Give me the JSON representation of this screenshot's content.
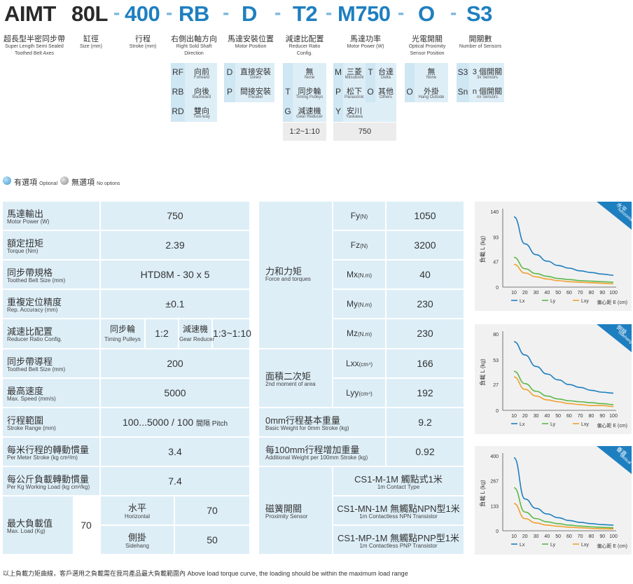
{
  "model": {
    "codes": [
      "AIMT",
      "80L",
      "400",
      "RB",
      "D",
      "T2",
      "M750",
      "O",
      "S3"
    ],
    "segments": [
      {
        "zh": "超長型半密同步帶",
        "en": "Super Length Semi Sealed Toothed Belt Axes"
      },
      {
        "zh": "缸徑",
        "en": "Size (mm)"
      },
      {
        "zh": "行程",
        "en": "Stroke (mm)"
      },
      {
        "zh": "右側出軸方向",
        "en": "Right Sold Shaft Direction"
      },
      {
        "zh": "馬達安裝位置",
        "en": "Motor Position"
      },
      {
        "zh": "減速比配置",
        "en": "Reducer Ratio Config."
      },
      {
        "zh": "馬達功率",
        "en": "Motor Power (W)"
      },
      {
        "zh": "光電開關",
        "en": "Optical Proximity Sensor Position"
      },
      {
        "zh": "開關數",
        "en": "Number of Sensors"
      }
    ]
  },
  "options": {
    "direction": [
      {
        "code": "RF",
        "zh": "向前",
        "en": "Forward"
      },
      {
        "code": "RB",
        "zh": "向後",
        "en": "Backward"
      },
      {
        "code": "RD",
        "zh": "雙向",
        "en": "Two-way"
      }
    ],
    "motor_position": [
      {
        "code": "D",
        "zh": "直接安裝",
        "en": "Direct"
      },
      {
        "code": "P",
        "zh": "間接安裝",
        "en": "Parallel"
      }
    ],
    "reducer": [
      {
        "code": "",
        "zh": "無",
        "en": "None"
      },
      {
        "code": "T",
        "zh": "同步輪",
        "en": "Timing Pulleys"
      },
      {
        "code": "G",
        "zh": "減速機",
        "en": "Gear Reducer"
      },
      {
        "ratio": "1:2~1:10"
      }
    ],
    "motor": [
      {
        "code": "M",
        "zh": "三菱",
        "en": "Mitsubishi"
      },
      {
        "code": "T",
        "zh": "台達",
        "en": "Delta"
      },
      {
        "code": "P",
        "zh": "松下",
        "en": "Panasonic"
      },
      {
        "code": "O",
        "zh": "其他",
        "en": "Others"
      },
      {
        "code": "Y",
        "zh": "安川",
        "en": "Yaskawa"
      },
      {
        "power": "750"
      }
    ],
    "sensor": [
      {
        "code": "",
        "zh": "無",
        "en": "None"
      },
      {
        "code": "O",
        "zh": "外掛",
        "en": "Hang Outside"
      }
    ],
    "sensor_count": [
      {
        "code": "S3",
        "zh": "3 個開關",
        "en": "3x Sensors"
      },
      {
        "code": "Sn",
        "zh": "n 個開關",
        "en": "nx Sensors"
      }
    ]
  },
  "legend": {
    "optional_zh": "有選項",
    "optional_en": "Optional",
    "none_zh": "無選項",
    "none_en": "No options"
  },
  "spec_left": [
    {
      "zh": "馬達輸出",
      "en": "Motor Power (W)",
      "value": "750"
    },
    {
      "zh": "額定扭矩",
      "en": "Torque (Nm)",
      "value": "2.39"
    },
    {
      "zh": "同步帶規格",
      "en": "Toothed Belt Size (mm)",
      "value": "HTD8M - 30 x 5"
    },
    {
      "zh": "重複定位精度",
      "en": "Rep. Accuracy (mm)",
      "value": "±0.1"
    },
    {
      "zh": "減速比配置",
      "en": "Reducer Ratio Config.",
      "sub1_zh": "同步輪",
      "sub1_en": "Timing Pulleys",
      "sub1_val": "1:2",
      "sub2_zh": "減速機",
      "sub2_en": "Gear Reducer",
      "sub2_val": "1:3~1:10"
    },
    {
      "zh": "同步帶導程",
      "en": "Toothed Belt Size (mm)",
      "value": "200"
    },
    {
      "zh": "最高速度",
      "en": "Max. Speed (mm/s)",
      "value": "5000"
    },
    {
      "zh": "行程範圍",
      "en": "Stroke Range (mm)",
      "value": "100...5000 / 100",
      "value_unit": "間隔 Pitch"
    },
    {
      "zh": "每米行程的轉動慣量",
      "en": "Per Meter Stroke (kg cm²/m)",
      "value": "3.4"
    },
    {
      "zh": "每公斤負載轉動慣量",
      "en": "Per Kg Working Load (kg cm²/kg)",
      "value": "7.4"
    },
    {
      "zh": "最大負載值",
      "en": "Max. Load (Kg)",
      "value": "70",
      "sub1_zh": "水平",
      "sub1_en": "Horizontal",
      "sub1_val": "70",
      "sub2_zh": "側掛",
      "sub2_en": "Sidehang",
      "sub2_val": "50"
    }
  ],
  "spec_right": {
    "force": {
      "zh": "力和力矩",
      "en": "Force and torques",
      "rows": [
        {
          "sym": "Fy",
          "sub": "(N)",
          "value": "1050"
        },
        {
          "sym": "Fz",
          "sub": "(N)",
          "value": "3200"
        },
        {
          "sym": "Mx",
          "sub": "(N.m)",
          "value": "40"
        },
        {
          "sym": "My",
          "sub": "(N.m)",
          "value": "230"
        },
        {
          "sym": "Mz",
          "sub": "(N.m)",
          "value": "230"
        }
      ]
    },
    "moment": {
      "zh": "面積二次矩",
      "en": "2nd moment of area",
      "rows": [
        {
          "sym": "Lxx",
          "sub": "(cm⁴)",
          "value": "166"
        },
        {
          "sym": "Lyy",
          "sub": "(cm⁴)",
          "value": "192"
        }
      ]
    },
    "base_weight": {
      "zh": "0mm行程基本重量",
      "en": "Basic Weight for 0mm Stroke (kg)",
      "value": "9.2"
    },
    "add_weight": {
      "zh": "每100mm行程增加重量",
      "en": "Additional Weight per 100mm Stroke (kg)",
      "value": "0.92"
    },
    "proximity": {
      "zh": "磁簧開關",
      "en": "Proximity Sensor",
      "rows": [
        {
          "zh": "CS1-M-1M 觸點式1米",
          "en": "1m Contact Type"
        },
        {
          "zh": "CS1-MN-1M 無觸點NPN型1米",
          "en": "1m Contactless NPN Transistor"
        },
        {
          "zh": "CS1-MP-1M 無觸點PNP型1米",
          "en": "1m Contactless PNP Transistor"
        }
      ]
    }
  },
  "chart_data": [
    {
      "type": "line",
      "badge_zh": "水平",
      "badge_en": "horizontal",
      "ylabel": "負載 L (kg)",
      "xlabel": "偏心距 E (cm)",
      "x": [
        10,
        20,
        30,
        40,
        50,
        60,
        70,
        80,
        90,
        100
      ],
      "yticks": [
        0,
        47,
        93,
        140
      ],
      "ylim": [
        0,
        140
      ],
      "series": [
        {
          "name": "Lx",
          "color": "#1e7fc0",
          "values": [
            130,
            80,
            60,
            48,
            40,
            35,
            30,
            27,
            24,
            22
          ]
        },
        {
          "name": "Ly",
          "color": "#5cb84a",
          "values": [
            55,
            34,
            25,
            20,
            16,
            14,
            12,
            11,
            10,
            9
          ]
        },
        {
          "name": "Lxy",
          "color": "#f0a030",
          "values": [
            42,
            26,
            19,
            15,
            12,
            10,
            9,
            8,
            7,
            6
          ]
        }
      ]
    },
    {
      "type": "line",
      "badge_zh": "側掛",
      "badge_en": "sidehang",
      "ylabel": "負載 L (kg)",
      "xlabel": "偏心距 E (cm)",
      "x": [
        10,
        20,
        30,
        40,
        50,
        60,
        70,
        80,
        90,
        100
      ],
      "yticks": [
        0,
        27,
        53,
        80
      ],
      "ylim": [
        0,
        80
      ],
      "series": [
        {
          "name": "Lx",
          "color": "#1e7fc0",
          "values": [
            72,
            58,
            46,
            38,
            32,
            27,
            24,
            21,
            19,
            18
          ]
        },
        {
          "name": "Ly",
          "color": "#5cb84a",
          "values": [
            41,
            28,
            20,
            15,
            12,
            10,
            9,
            8,
            7,
            6
          ]
        },
        {
          "name": "Lxy",
          "color": "#f0a030",
          "values": [
            35,
            22,
            15,
            11,
            9,
            7,
            6,
            5,
            5,
            4
          ]
        }
      ]
    },
    {
      "type": "line",
      "badge_zh": "垂直",
      "badge_en": "vertical",
      "ylabel": "負載 L (kg)",
      "xlabel": "偏心距 E (cm)",
      "x": [
        10,
        20,
        30,
        40,
        50,
        60,
        70,
        80,
        90,
        100
      ],
      "yticks": [
        0,
        133,
        267,
        400
      ],
      "ylim": [
        0,
        400
      ],
      "series": [
        {
          "name": "Lx",
          "color": "#1e7fc0",
          "values": [
            390,
            170,
            120,
            90,
            70,
            55,
            45,
            38,
            33,
            30
          ]
        },
        {
          "name": "Ly",
          "color": "#5cb84a",
          "values": [
            230,
            100,
            65,
            48,
            38,
            30,
            25,
            21,
            18,
            16
          ]
        },
        {
          "name": "Lxy",
          "color": "#f0a030",
          "values": [
            145,
            65,
            42,
            30,
            24,
            19,
            16,
            13,
            11,
            10
          ]
        }
      ]
    }
  ],
  "footnote": "以上負載力矩曲線，客戶選用之負載需在我司產品最大負載範圍內 Above load torque curve, the loading should be within the maximum load range"
}
